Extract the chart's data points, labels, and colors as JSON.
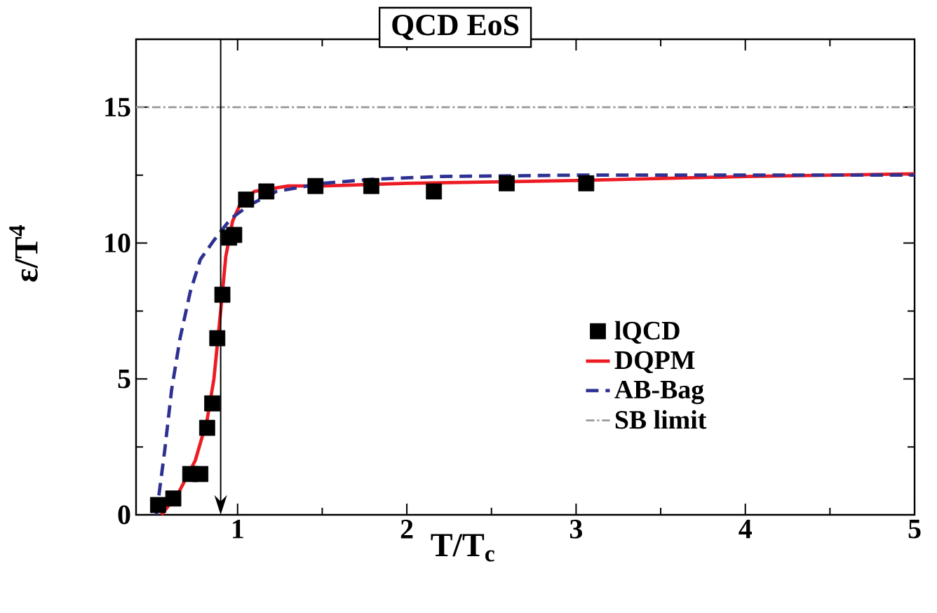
{
  "chart_data": {
    "type": "line",
    "title": "QCD EoS",
    "xlabel": "T/T$_{c}$",
    "ylabel": "ε/T$^{4}$",
    "xlim": [
      0.4,
      5
    ],
    "ylim": [
      0,
      17.5
    ],
    "xticks": [
      1,
      2,
      3,
      4,
      5
    ],
    "yticks": [
      0,
      5,
      10,
      15
    ],
    "legend": "right",
    "grid": false,
    "series": [
      {
        "name": "lQCD",
        "type": "scatter",
        "marker": "square",
        "color": "#000000",
        "x": [
          0.53,
          0.62,
          0.72,
          0.78,
          0.82,
          0.85,
          0.88,
          0.91,
          0.95,
          0.98,
          1.05,
          1.17,
          1.46,
          1.79,
          2.16,
          2.59,
          3.06
        ],
        "values": [
          0.36,
          0.6,
          1.5,
          1.5,
          3.2,
          4.1,
          6.5,
          8.1,
          10.2,
          10.3,
          11.6,
          11.9,
          12.1,
          12.1,
          11.9,
          12.2,
          12.2
        ]
      },
      {
        "name": "DQPM",
        "marker": "none",
        "line_style": "solid",
        "color": "#ed1c24",
        "x": [
          0.55,
          0.65,
          0.75,
          0.82,
          0.86,
          0.9,
          0.93,
          0.97,
          1.02,
          1.1,
          1.3,
          1.5,
          2,
          3,
          4,
          5
        ],
        "values": [
          0,
          0.8,
          2,
          3.5,
          5,
          7.5,
          9.5,
          10.8,
          11.5,
          11.9,
          12.1,
          12.1,
          12.2,
          12.3,
          12.45,
          12.55
        ]
      },
      {
        "name": "AB-Bag",
        "marker": "none",
        "line_style": "dashed",
        "color": "#2e3192",
        "x": [
          0.52,
          0.57,
          0.61,
          0.66,
          0.72,
          0.78,
          0.86,
          0.96,
          1.07,
          1.23,
          1.5,
          1.8,
          2.2,
          3,
          4,
          5
        ],
        "values": [
          0,
          2.4,
          4.6,
          6.5,
          8.2,
          9.4,
          10.1,
          10.9,
          11.4,
          11.9,
          12.2,
          12.35,
          12.45,
          12.5,
          12.5,
          12.5
        ]
      }
    ],
    "ref_lines": [
      {
        "axis": "y",
        "value": 15,
        "label": "SB limit",
        "color": "#999999",
        "line_style": "dashdot"
      },
      {
        "axis": "x",
        "value": 0.9,
        "color": "#000000",
        "line_style": "solid"
      }
    ]
  }
}
